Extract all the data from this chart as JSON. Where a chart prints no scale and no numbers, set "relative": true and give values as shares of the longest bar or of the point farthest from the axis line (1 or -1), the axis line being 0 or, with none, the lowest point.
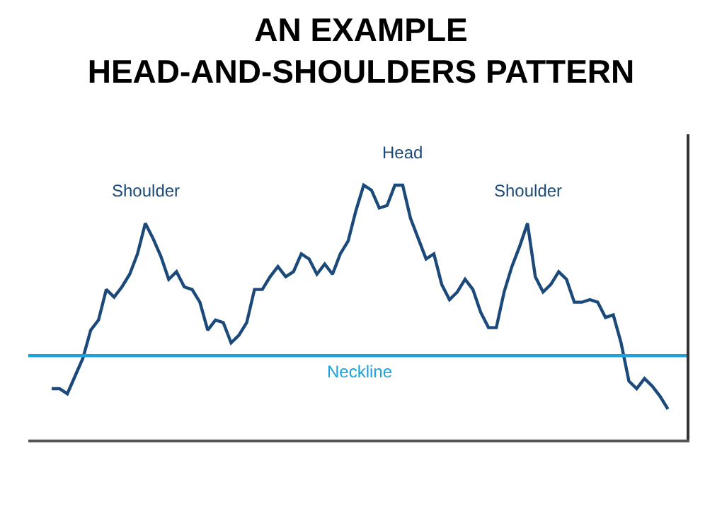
{
  "chart_data": {
    "type": "line",
    "title": "AN EXAMPLE\nHEAD-AND-SHOULDERS PATTERN",
    "relative": true,
    "categories": [
      null,
      null,
      null,
      null,
      null,
      null,
      null,
      null,
      null,
      null,
      null,
      null,
      null,
      null,
      null,
      null,
      null,
      null,
      null,
      null,
      null,
      null,
      null,
      null,
      null,
      null,
      null,
      null,
      null,
      null,
      null,
      null,
      null,
      null,
      null,
      null,
      null,
      null,
      null,
      null,
      null,
      null,
      null,
      null,
      null,
      null,
      null,
      null,
      null,
      null,
      null,
      null,
      null,
      null,
      null,
      null,
      null,
      null,
      null,
      null,
      null,
      null,
      null,
      null,
      null,
      null,
      null,
      null,
      null,
      null,
      null,
      null,
      null,
      null,
      null,
      null,
      null,
      null,
      null,
      null
    ],
    "series": [
      {
        "color": "#1b4a7a",
        "values": [
          0.2,
          0.2,
          0.18,
          0.25,
          0.32,
          0.43,
          0.47,
          0.59,
          0.56,
          0.6,
          0.65,
          0.73,
          0.85,
          0.79,
          0.72,
          0.63,
          0.66,
          0.6,
          0.59,
          0.54,
          0.43,
          0.47,
          0.46,
          0.38,
          0.41,
          0.46,
          0.59,
          0.59,
          0.64,
          0.68,
          0.64,
          0.66,
          0.73,
          0.71,
          0.65,
          0.69,
          0.65,
          0.73,
          0.78,
          0.9,
          1.0,
          0.98,
          0.91,
          0.92,
          1.0,
          1.0,
          0.87,
          0.79,
          0.71,
          0.73,
          0.61,
          0.55,
          0.58,
          0.63,
          0.59,
          0.5,
          0.44,
          0.44,
          0.58,
          0.68,
          0.76,
          0.85,
          0.64,
          0.58,
          0.61,
          0.66,
          0.63,
          0.54,
          0.54,
          0.55,
          0.54,
          0.48,
          0.49,
          0.38,
          0.23,
          0.2,
          0.24,
          0.21,
          0.17,
          0.12
        ]
      }
    ],
    "ref_lines": [
      {
        "axis": "y",
        "value": 0.33,
        "label": "Neckline",
        "color": "#1aa3dd"
      }
    ],
    "annotations": [
      "Shoulder",
      "Head",
      "Shoulder"
    ],
    "marker": "none",
    "line_style": "solid"
  }
}
